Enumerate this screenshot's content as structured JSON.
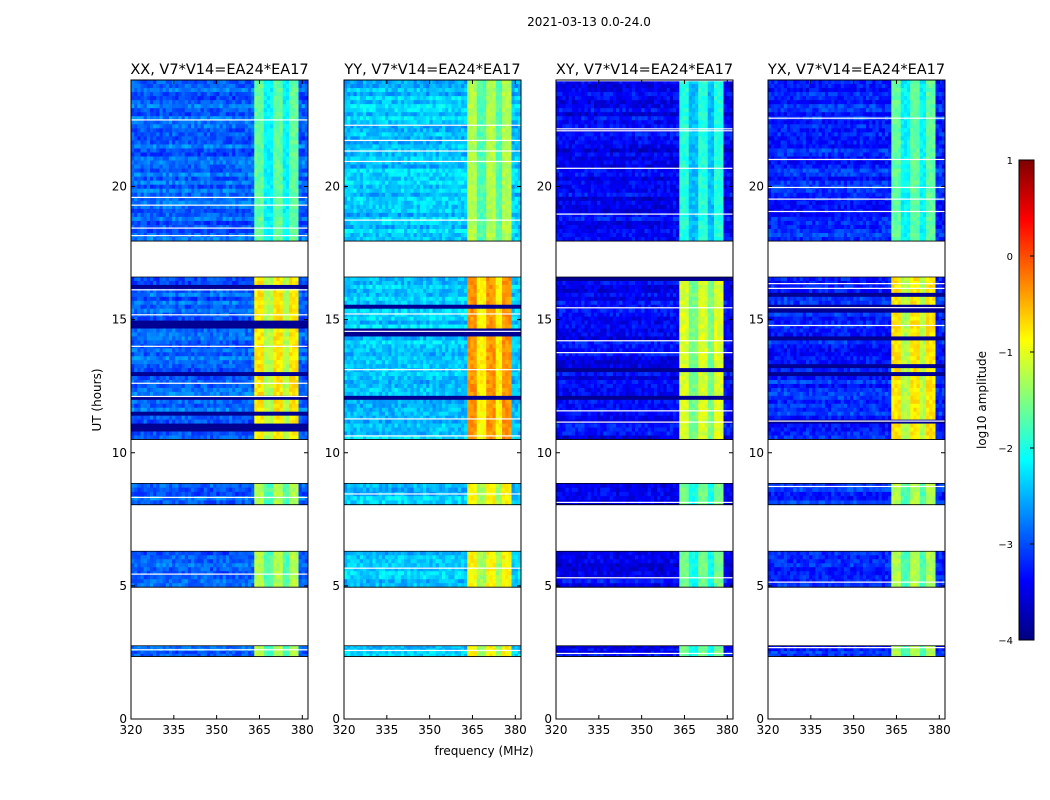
{
  "figure": {
    "suptitle": "2021-03-13 0.0-24.0",
    "xlabel": "frequency (MHz)",
    "ylabel": "UT (hours)"
  },
  "colorbar": {
    "label": "log10 amplitude",
    "range": [
      -4,
      1
    ],
    "ticks": [
      1,
      0,
      -1,
      -2,
      -3,
      -4
    ],
    "colormap": [
      "#00007f",
      "#0000ff",
      "#007fff",
      "#00ffff",
      "#7fff7f",
      "#ffff00",
      "#ff7f00",
      "#ff0000",
      "#7f0000"
    ]
  },
  "chart_data": [
    {
      "type": "heatmap",
      "title": "XX, V7*V14=EA24*EA17",
      "xlim": [
        320,
        382
      ],
      "ylim": [
        0,
        24
      ],
      "xticks": [
        320,
        335,
        350,
        365,
        380
      ],
      "yticks": [
        0,
        5,
        10,
        15,
        20
      ],
      "base_level": -2.9,
      "rfi_band_level": -1.4,
      "rfi_band_mhz": [
        363,
        379
      ]
    },
    {
      "type": "heatmap",
      "title": "YY, V7*V14=EA24*EA17",
      "xlim": [
        320,
        382
      ],
      "ylim": [
        0,
        24
      ],
      "xticks": [
        320,
        335,
        350,
        365,
        380
      ],
      "yticks": [
        0,
        5,
        10,
        15,
        20
      ],
      "base_level": -2.4,
      "rfi_band_level": -1.0,
      "rfi_band_mhz": [
        363,
        379
      ]
    },
    {
      "type": "heatmap",
      "title": "XY, V7*V14=EA24*EA17",
      "xlim": [
        320,
        382
      ],
      "ylim": [
        0,
        24
      ],
      "xticks": [
        320,
        335,
        350,
        365,
        380
      ],
      "yticks": [
        0,
        5,
        10,
        15,
        20
      ],
      "base_level": -3.4,
      "rfi_band_level": -1.7,
      "rfi_band_mhz": [
        363,
        379
      ]
    },
    {
      "type": "heatmap",
      "title": "YX, V7*V14=EA24*EA17",
      "xlim": [
        320,
        382
      ],
      "ylim": [
        0,
        24
      ],
      "xticks": [
        320,
        335,
        350,
        365,
        380
      ],
      "yticks": [
        0,
        5,
        10,
        15,
        20
      ],
      "base_level": -3.2,
      "rfi_band_level": -1.4,
      "rfi_band_mhz": [
        363,
        379
      ]
    }
  ],
  "data_blocks_ut": [
    [
      2.35,
      2.75
    ],
    [
      4.95,
      6.3
    ],
    [
      8.05,
      8.85
    ],
    [
      10.5,
      16.6
    ],
    [
      17.95,
      24.0
    ]
  ]
}
